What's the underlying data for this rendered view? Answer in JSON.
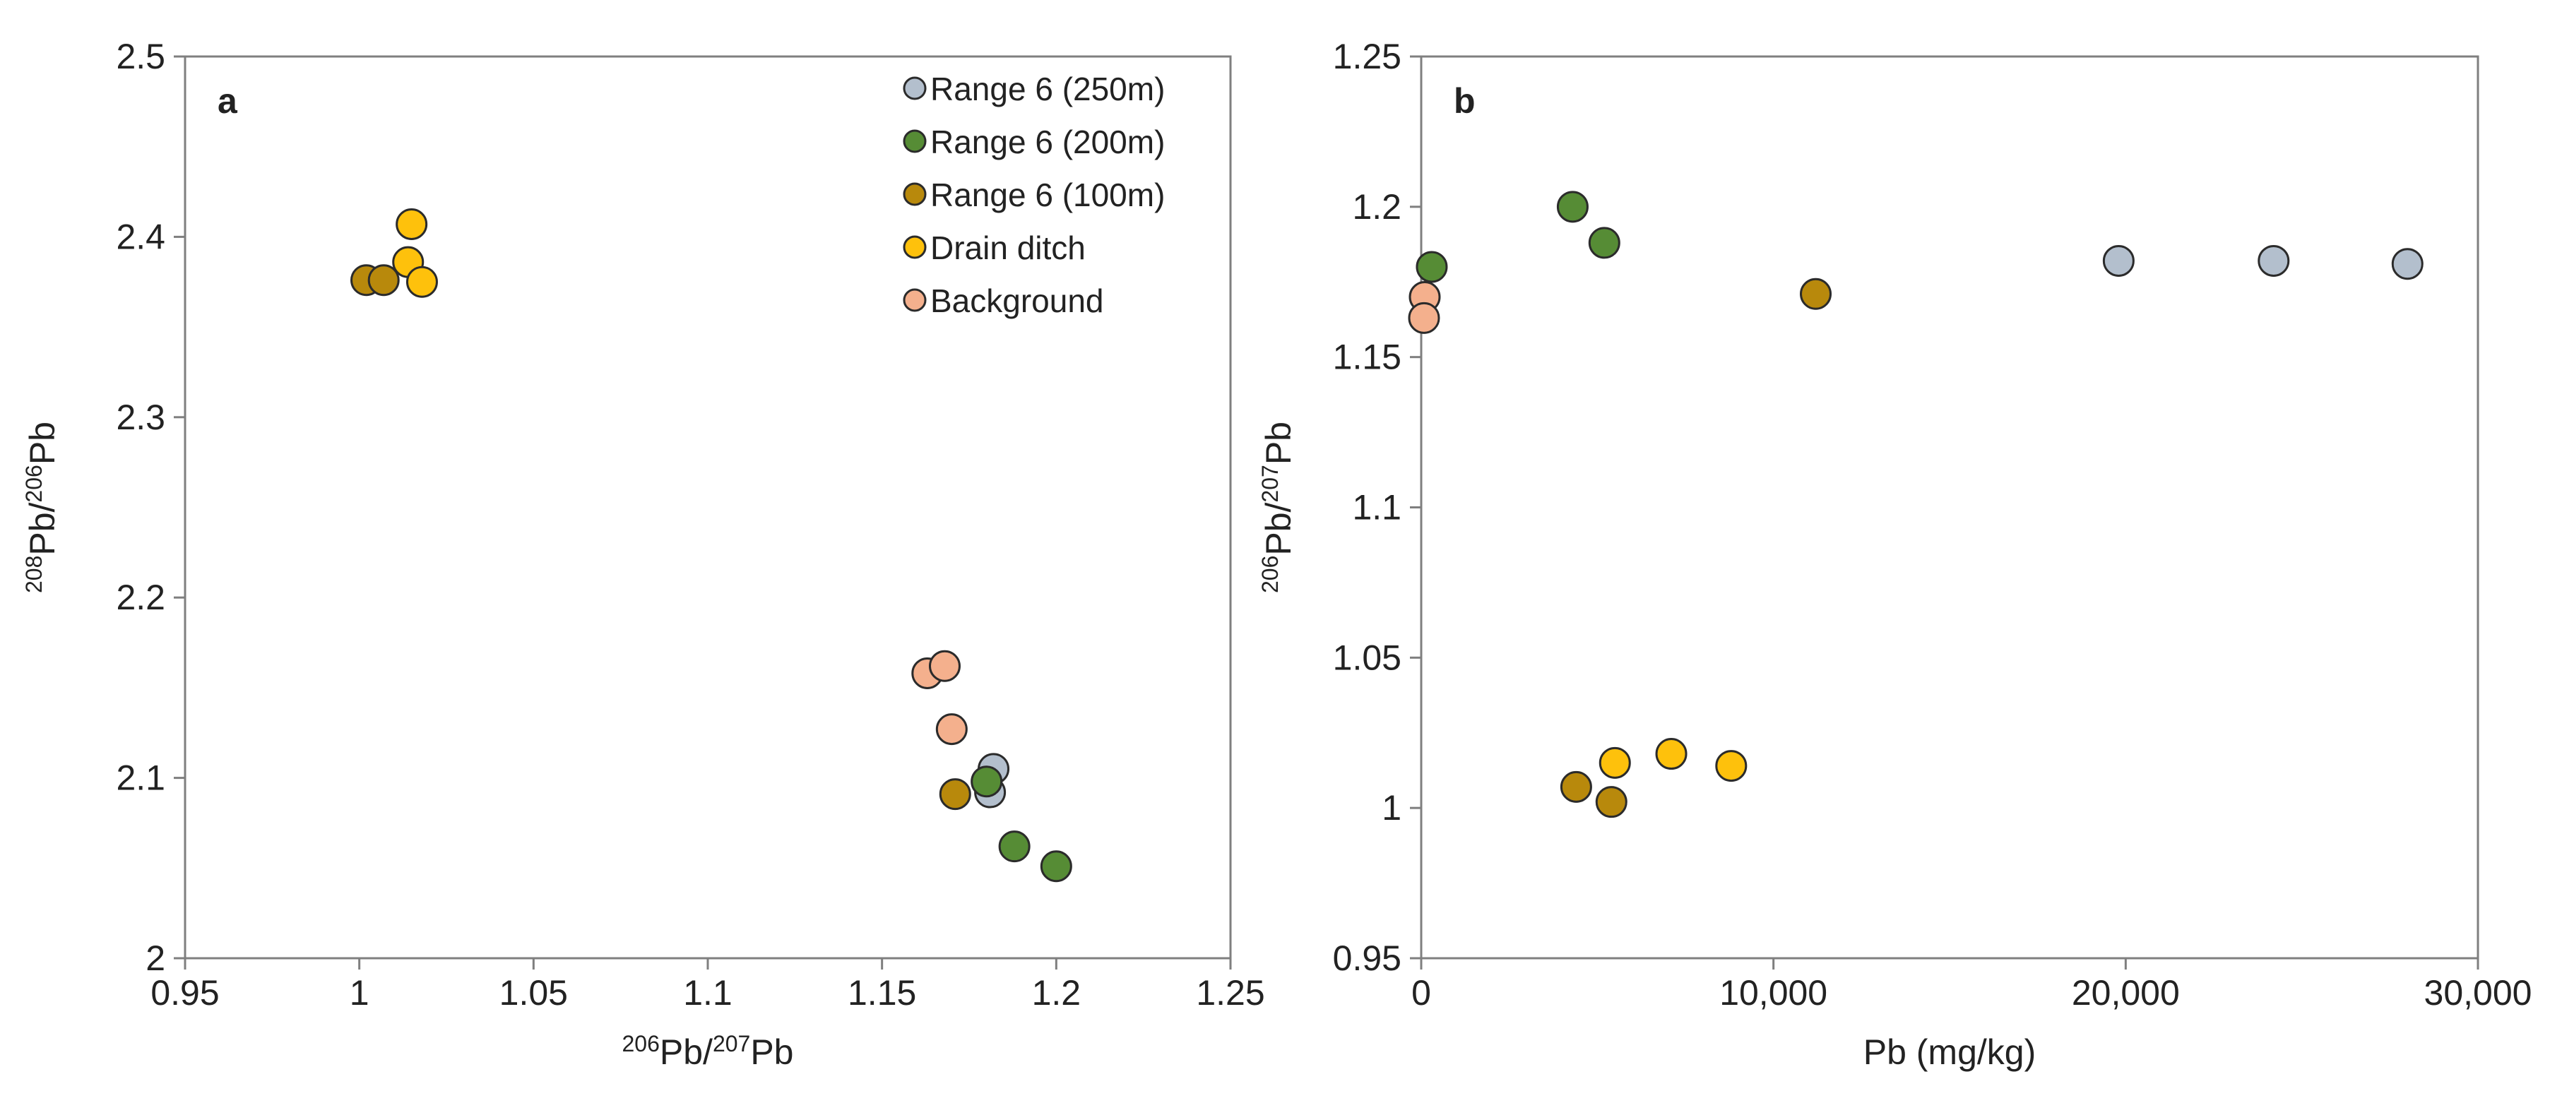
{
  "series_styles": [
    {
      "key": "range250",
      "color": "#b3bfcd"
    },
    {
      "key": "range200",
      "color": "#568c35"
    },
    {
      "key": "range100",
      "color": "#b8890c"
    },
    {
      "key": "drain",
      "color": "#fec10c"
    },
    {
      "key": "background",
      "color": "#f4b08d"
    }
  ],
  "chart_data": [
    {
      "type": "scatter",
      "panel_label": "a",
      "xlabel": {
        "pre": "",
        "sup1": "206",
        "mid": "Pb/",
        "sup2": "207",
        "post": "Pb"
      },
      "ylabel": {
        "pre": "",
        "sup1": "208",
        "mid": "Pb/",
        "sup2": "206",
        "post": "Pb"
      },
      "xlim": [
        0.95,
        1.25
      ],
      "ylim": [
        2.0,
        2.5
      ],
      "xticks": [
        0.95,
        1.0,
        1.05,
        1.1,
        1.15,
        1.2,
        1.25
      ],
      "xtick_labels": [
        "0.95",
        "1",
        "1.05",
        "1.1",
        "1.15",
        "1.2",
        "1.25"
      ],
      "yticks": [
        2.0,
        2.1,
        2.2,
        2.3,
        2.4,
        2.5
      ],
      "ytick_labels": [
        "2",
        "2.1",
        "2.2",
        "2.3",
        "2.4",
        "2.5"
      ],
      "grid": false,
      "legend": {
        "placement": "top-right",
        "entries": [
          "Range 6 (250m)",
          "Range 6 (200m)",
          "Range 6 (100m)",
          "Drain ditch",
          "Background"
        ]
      },
      "series": [
        {
          "name": "Range 6 (250m)",
          "style": 0,
          "points": [
            [
              1.182,
              2.105
            ],
            [
              1.181,
              2.092
            ]
          ]
        },
        {
          "name": "Range 6 (200m)",
          "style": 1,
          "points": [
            [
              1.2,
              2.051
            ],
            [
              1.188,
              2.062
            ],
            [
              1.18,
              2.098
            ]
          ]
        },
        {
          "name": "Range 6 (100m)",
          "style": 2,
          "points": [
            [
              1.002,
              2.376
            ],
            [
              1.007,
              2.376
            ],
            [
              1.171,
              2.091
            ]
          ]
        },
        {
          "name": "Drain ditch",
          "style": 3,
          "points": [
            [
              1.015,
              2.407
            ],
            [
              1.014,
              2.386
            ],
            [
              1.018,
              2.375
            ]
          ]
        },
        {
          "name": "Background",
          "style": 4,
          "points": [
            [
              1.163,
              2.158
            ],
            [
              1.168,
              2.162
            ],
            [
              1.17,
              2.127
            ]
          ]
        }
      ]
    },
    {
      "type": "scatter",
      "panel_label": "b",
      "xlabel": {
        "pre": "Pb (mg/kg)",
        "sup1": "",
        "mid": "",
        "sup2": "",
        "post": ""
      },
      "ylabel": {
        "pre": "",
        "sup1": "206",
        "mid": "Pb/",
        "sup2": "207",
        "post": "Pb"
      },
      "xlim": [
        0,
        30000
      ],
      "ylim": [
        0.95,
        1.25
      ],
      "xticks": [
        0,
        10000,
        20000,
        30000
      ],
      "xtick_labels": [
        "0",
        "10,000",
        "20,000",
        "30,000"
      ],
      "yticks": [
        0.95,
        1.0,
        1.05,
        1.1,
        1.15,
        1.2,
        1.25
      ],
      "ytick_labels": [
        "0.95",
        "1",
        "1.05",
        "1.1",
        "1.15",
        "1.2",
        "1.25"
      ],
      "grid": false,
      "series": [
        {
          "name": "Range 6 (250m)",
          "style": 0,
          "points": [
            [
              19800,
              1.182
            ],
            [
              24200,
              1.182
            ],
            [
              28000,
              1.181
            ]
          ]
        },
        {
          "name": "Range 6 (200m)",
          "style": 1,
          "points": [
            [
              4300,
              1.2
            ],
            [
              5200,
              1.188
            ],
            [
              300,
              1.18
            ]
          ]
        },
        {
          "name": "Range 6 (100m)",
          "style": 2,
          "points": [
            [
              11200,
              1.171
            ],
            [
              4400,
              1.007
            ],
            [
              5400,
              1.002
            ]
          ]
        },
        {
          "name": "Drain ditch",
          "style": 3,
          "points": [
            [
              5500,
              1.015
            ],
            [
              7100,
              1.018
            ],
            [
              8800,
              1.014
            ]
          ]
        },
        {
          "name": "Background",
          "style": 4,
          "points": [
            [
              100,
              1.17
            ],
            [
              80,
              1.163
            ]
          ]
        }
      ]
    }
  ]
}
